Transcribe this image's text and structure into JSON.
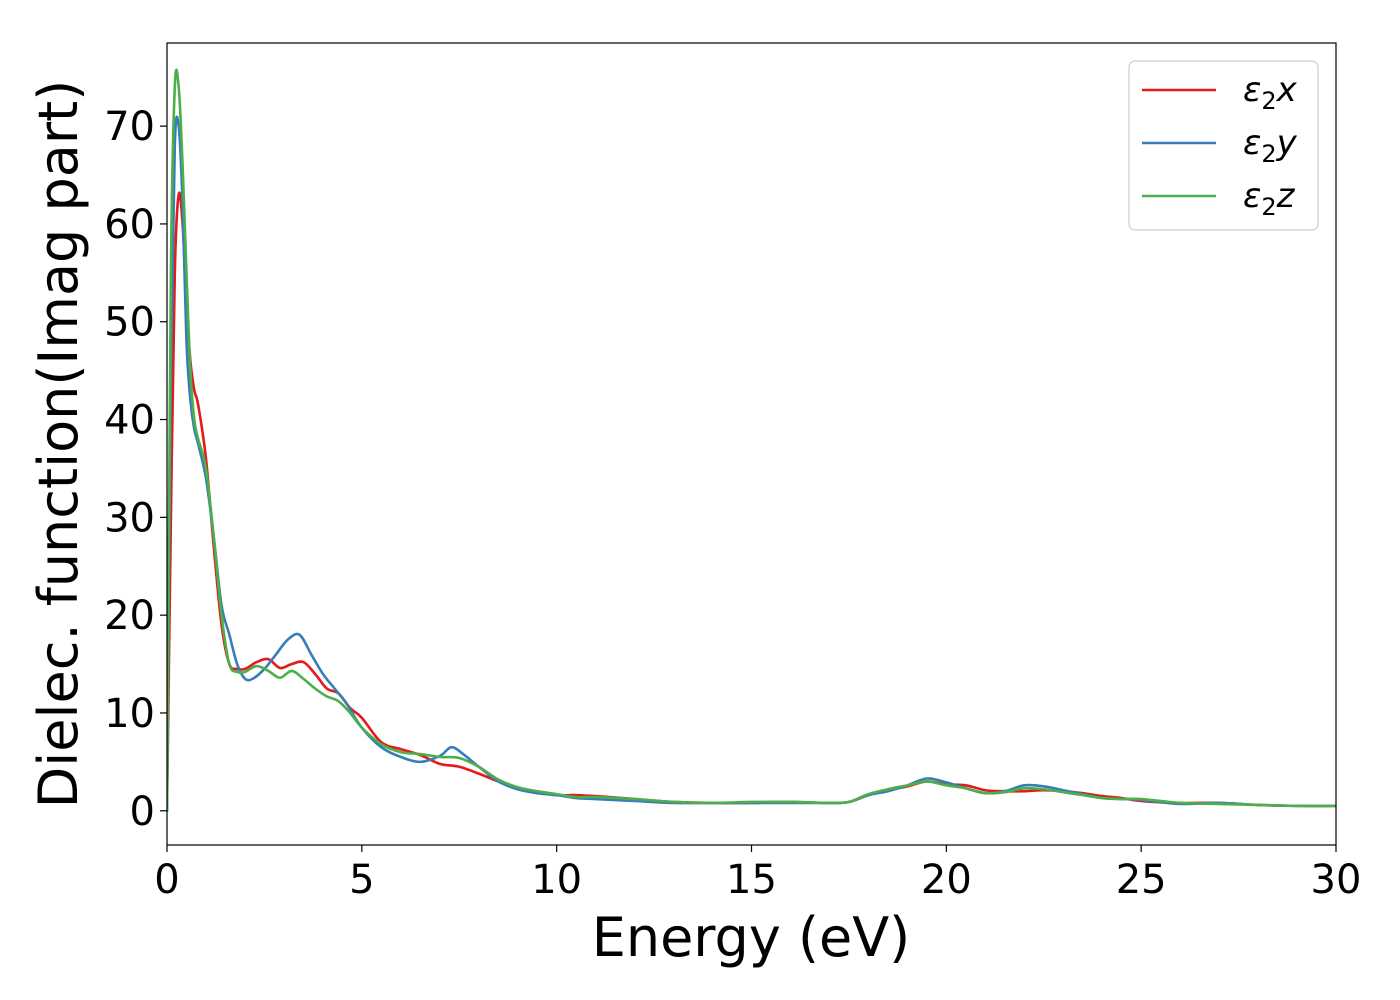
{
  "chart_data": {
    "type": "line",
    "title": "",
    "xlabel": "Energy (eV)",
    "ylabel": "Dielec. function(Imag part)",
    "xlim": [
      0,
      30
    ],
    "ylim": [
      -3.5,
      78.5
    ],
    "xticks": [
      0,
      5,
      10,
      15,
      20,
      25,
      30
    ],
    "yticks": [
      0,
      10,
      20,
      30,
      40,
      50,
      60,
      70
    ],
    "grid": false,
    "legend_position": "top-right",
    "series": [
      {
        "name": "ε₂x",
        "legend_base": "ε",
        "legend_sub": "2",
        "legend_suffix": "x",
        "color": "#e41a1c",
        "x": [
          0,
          0.1,
          0.2,
          0.3,
          0.4,
          0.5,
          0.6,
          0.7,
          0.8,
          1.0,
          1.2,
          1.4,
          1.6,
          1.8,
          2.0,
          2.3,
          2.6,
          2.9,
          3.2,
          3.5,
          3.8,
          4.1,
          4.4,
          4.7,
          5.0,
          5.5,
          6.0,
          6.5,
          7.0,
          7.5,
          8.0,
          8.5,
          9.0,
          9.5,
          10.0,
          10.5,
          11.0,
          12.0,
          13.0,
          14.0,
          15.0,
          16.0,
          17.0,
          17.5,
          18.0,
          18.5,
          19.0,
          19.5,
          20.0,
          20.5,
          21.0,
          21.5,
          22.0,
          22.5,
          23.0,
          23.5,
          24.0,
          24.5,
          25.0,
          26.0,
          27.0,
          28.0,
          29.0,
          30.0
        ],
        "y": [
          0,
          30,
          55,
          63,
          60,
          52,
          46,
          43,
          41.5,
          36,
          27,
          19,
          15,
          14.5,
          14.5,
          15.2,
          15.5,
          14.6,
          15,
          15.2,
          14,
          12.5,
          12,
          10.5,
          9.5,
          7,
          6.3,
          5.7,
          4.8,
          4.5,
          3.8,
          3,
          2.2,
          1.9,
          1.6,
          1.6,
          1.5,
          1.2,
          0.9,
          0.8,
          0.8,
          0.9,
          0.8,
          0.9,
          1.6,
          2.1,
          2.5,
          3.0,
          2.7,
          2.6,
          2.1,
          2.0,
          2.0,
          2.1,
          2.0,
          1.8,
          1.5,
          1.3,
          1.0,
          0.8,
          0.8,
          0.6,
          0.5,
          0.5
        ]
      },
      {
        "name": "ε₂y",
        "legend_base": "ε",
        "legend_sub": "2",
        "legend_suffix": "y",
        "color": "#377eb8",
        "x": [
          0,
          0.1,
          0.2,
          0.3,
          0.4,
          0.5,
          0.6,
          0.7,
          0.8,
          1.0,
          1.2,
          1.4,
          1.6,
          1.8,
          2.0,
          2.2,
          2.5,
          2.8,
          3.1,
          3.4,
          3.7,
          4.0,
          4.3,
          4.6,
          5.0,
          5.5,
          6.0,
          6.5,
          7.0,
          7.3,
          7.6,
          8.0,
          8.5,
          9.0,
          9.5,
          10.0,
          10.5,
          11.0,
          12.0,
          13.0,
          14.0,
          15.0,
          16.0,
          17.0,
          17.5,
          18.0,
          18.5,
          19.0,
          19.5,
          20.0,
          20.5,
          21.0,
          21.5,
          22.0,
          22.5,
          23.0,
          23.5,
          24.0,
          24.5,
          25.0,
          26.0,
          27.0,
          28.0,
          29.0,
          30.0
        ],
        "y": [
          0,
          45,
          68,
          70,
          62,
          48,
          42,
          39,
          37.5,
          34,
          28,
          21,
          18,
          15,
          13.5,
          13.5,
          14.5,
          16,
          17.5,
          18,
          16,
          14,
          12.5,
          11,
          8.5,
          6.5,
          5.5,
          5.0,
          5.6,
          6.5,
          5.8,
          4.5,
          3,
          2.2,
          1.8,
          1.6,
          1.3,
          1.2,
          1.0,
          0.8,
          0.8,
          0.8,
          0.8,
          0.8,
          0.9,
          1.6,
          2.0,
          2.6,
          3.3,
          2.9,
          2.3,
          1.8,
          2.0,
          2.6,
          2.5,
          2.1,
          1.7,
          1.3,
          1.2,
          1.1,
          0.7,
          0.8,
          0.6,
          0.5,
          0.5
        ]
      },
      {
        "name": "ε₂z",
        "legend_base": "ε",
        "legend_sub": "2",
        "legend_suffix": "z",
        "color": "#4daf4a",
        "x": [
          0,
          0.1,
          0.2,
          0.3,
          0.4,
          0.5,
          0.6,
          0.7,
          0.8,
          1.0,
          1.2,
          1.4,
          1.6,
          1.8,
          2.0,
          2.3,
          2.6,
          2.9,
          3.2,
          3.5,
          3.8,
          4.1,
          4.4,
          4.7,
          5.0,
          5.5,
          6.0,
          6.5,
          7.0,
          7.5,
          8.0,
          8.5,
          9.0,
          9.5,
          10.0,
          10.5,
          11.0,
          12.0,
          13.0,
          14.0,
          15.0,
          16.0,
          17.0,
          17.5,
          18.0,
          18.5,
          19.0,
          19.5,
          20.0,
          20.5,
          21.0,
          21.5,
          22.0,
          22.5,
          23.0,
          23.5,
          24.0,
          24.5,
          25.0,
          26.0,
          27.0,
          28.0,
          29.0,
          30.0
        ],
        "y": [
          0,
          55,
          74,
          74,
          66,
          55,
          45,
          40,
          38,
          35,
          28,
          20,
          15,
          14.2,
          14.2,
          14.8,
          14.3,
          13.6,
          14.3,
          13.5,
          12.5,
          11.7,
          11.2,
          10,
          8.5,
          6.8,
          6.0,
          5.8,
          5.5,
          5.4,
          4.5,
          3.2,
          2.4,
          2.0,
          1.7,
          1.4,
          1.4,
          1.2,
          0.9,
          0.8,
          0.9,
          0.9,
          0.8,
          0.9,
          1.7,
          2.2,
          2.6,
          3.0,
          2.6,
          2.3,
          1.8,
          1.9,
          2.3,
          2.2,
          1.9,
          1.6,
          1.3,
          1.2,
          1.2,
          0.8,
          0.7,
          0.6,
          0.5,
          0.5
        ]
      }
    ]
  }
}
